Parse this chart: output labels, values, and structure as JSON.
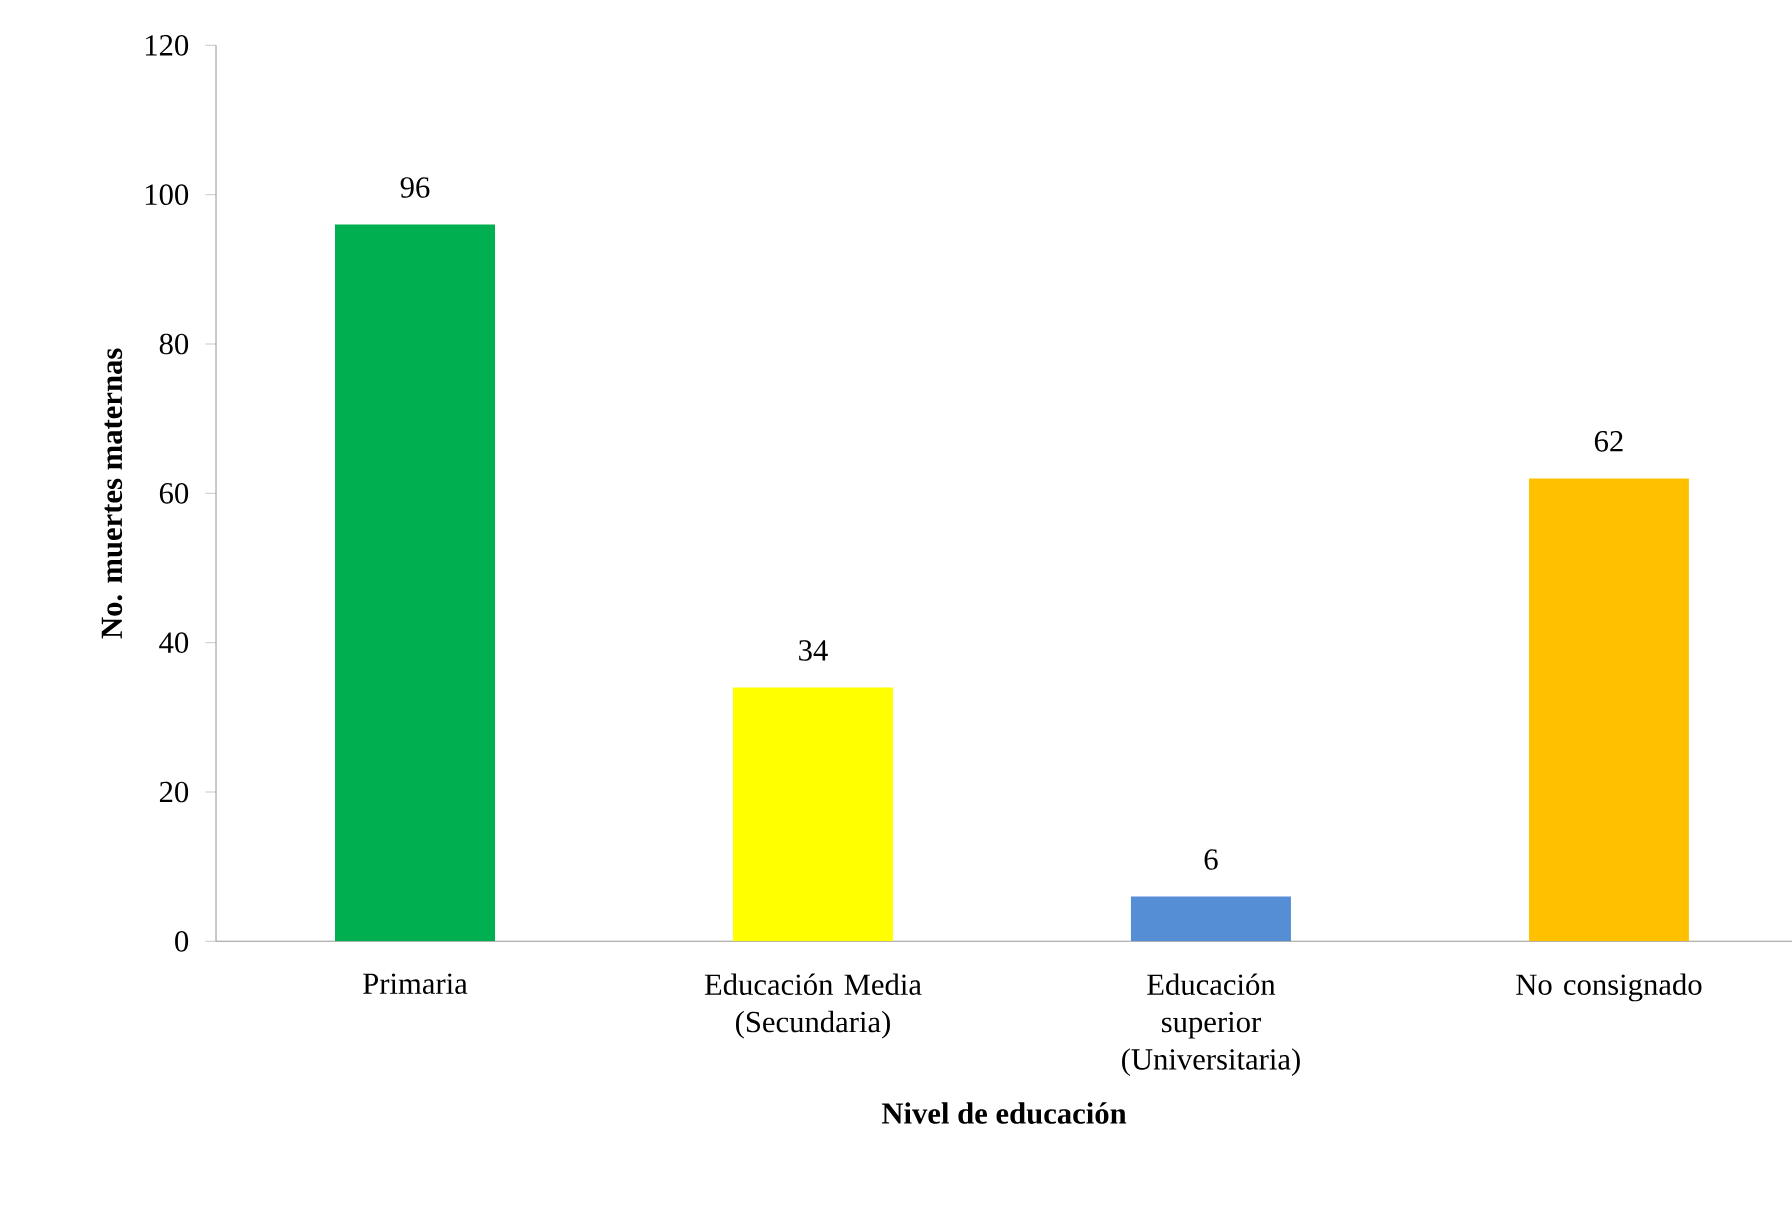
{
  "chart_data": {
    "type": "bar",
    "xlabel": "Nivel de educación",
    "ylabel": "No. muertes maternas",
    "categories": [
      "Primaria",
      "Educación Media (Secundaria)",
      "Educación superior (Universitaria)",
      "No consignado"
    ],
    "values": [
      96,
      34,
      6,
      62
    ],
    "colors": [
      "#00b050",
      "#ffff00",
      "#558ed5",
      "#ffc000"
    ],
    "ylim": [
      0,
      120
    ],
    "yticks": [
      0,
      20,
      40,
      60,
      80,
      100,
      120
    ],
    "data_labels": true,
    "grid": false
  }
}
